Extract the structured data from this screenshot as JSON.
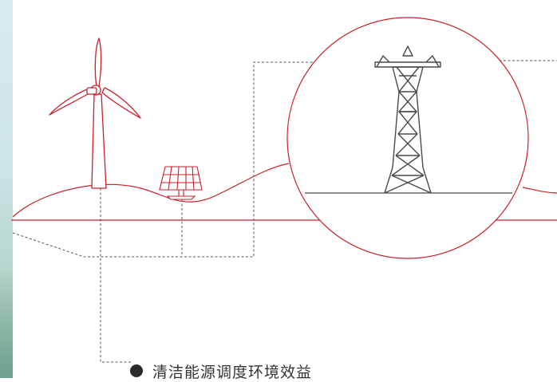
{
  "legend": {
    "label": "清洁能源调度环境效益",
    "dot_color": "#2b2b2b"
  },
  "colors": {
    "line_red": "#c8202b",
    "dash_gray": "#555555",
    "tower_gray": "#4a4a4a"
  },
  "icons": [
    "wind-turbine-icon",
    "solar-panel-icon",
    "transmission-tower-icon"
  ]
}
